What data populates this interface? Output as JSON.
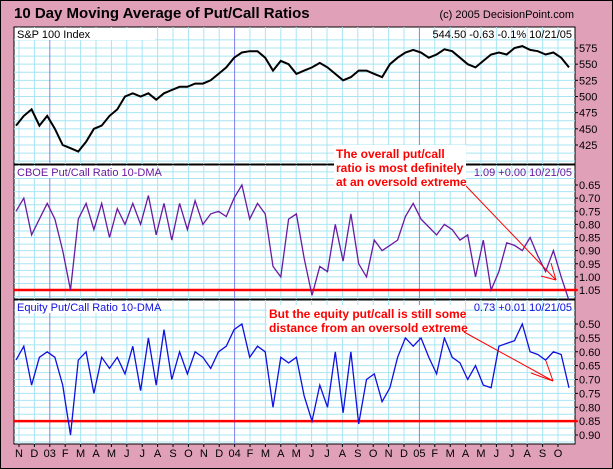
{
  "header": {
    "title": "10 Day Moving Average of Put/Call Ratios",
    "copyright": "(c) 2005 DecisionPoint.com"
  },
  "chart_data": [
    {
      "type": "line",
      "title": "S&P 100 Index",
      "readout": "544.50  -0.63  -0.1%  10/21/05",
      "color": "#000000",
      "ylim": [
        400,
        595
      ],
      "ticks": [
        425,
        450,
        475,
        500,
        525,
        550,
        575
      ],
      "tick_labels": [
        "425",
        "450",
        "475",
        "500",
        "525",
        "550",
        "575"
      ],
      "values": [
        455,
        470,
        480,
        455,
        470,
        450,
        425,
        420,
        415,
        430,
        450,
        455,
        470,
        480,
        500,
        505,
        500,
        505,
        495,
        505,
        510,
        515,
        515,
        520,
        520,
        525,
        535,
        545,
        560,
        568,
        570,
        570,
        560,
        540,
        555,
        550,
        535,
        540,
        545,
        552,
        545,
        535,
        525,
        530,
        540,
        540,
        535,
        530,
        550,
        560,
        568,
        572,
        568,
        560,
        565,
        573,
        570,
        560,
        550,
        545,
        555,
        565,
        568,
        565,
        575,
        578,
        572,
        570,
        565,
        568,
        560,
        545
      ]
    },
    {
      "type": "line",
      "title": "CBOE Put/Call Ratio 10-DMA",
      "readout": "1.09  +0.00  10/21/05",
      "color": "#6A1BA0",
      "inverted": true,
      "ylim": [
        0.6,
        1.1
      ],
      "ticks": [
        0.65,
        0.7,
        0.75,
        0.8,
        0.85,
        0.9,
        0.95,
        1.0,
        1.05
      ],
      "tick_labels": [
        "0.65",
        "0.70",
        "0.75",
        "0.80",
        "0.85",
        "0.90",
        "0.95",
        "1.00",
        "1.05"
      ],
      "reference_line": 1.05,
      "values": [
        0.75,
        0.7,
        0.84,
        0.78,
        0.72,
        0.78,
        0.9,
        1.05,
        0.78,
        0.72,
        0.82,
        0.72,
        0.85,
        0.74,
        0.8,
        0.72,
        0.8,
        0.69,
        0.84,
        0.72,
        0.86,
        0.72,
        0.82,
        0.71,
        0.8,
        0.76,
        0.75,
        0.77,
        0.7,
        0.65,
        0.78,
        0.72,
        0.76,
        0.96,
        1.0,
        0.78,
        0.76,
        0.93,
        1.07,
        0.96,
        0.98,
        0.8,
        0.94,
        0.76,
        0.95,
        1.0,
        0.86,
        0.9,
        0.88,
        0.86,
        0.77,
        0.72,
        0.78,
        0.81,
        0.84,
        0.8,
        0.82,
        0.86,
        0.84,
        1.0,
        0.86,
        1.05,
        0.98,
        0.87,
        0.88,
        0.9,
        0.85,
        0.92,
        0.98,
        0.9,
        1.0,
        1.09
      ]
    },
    {
      "type": "line",
      "title": "Equity Put/Call Ratio 10-DMA",
      "readout": "0.73  +0.01  10/21/05",
      "color": "#1010E0",
      "inverted": true,
      "ylim": [
        0.45,
        0.93
      ],
      "ticks": [
        0.5,
        0.55,
        0.6,
        0.65,
        0.7,
        0.75,
        0.8,
        0.85,
        0.9
      ],
      "tick_labels": [
        "0.50",
        "0.55",
        "0.60",
        "0.65",
        "0.70",
        "0.75",
        "0.80",
        "0.85",
        "0.90"
      ],
      "reference_line": 0.85,
      "values": [
        0.63,
        0.58,
        0.72,
        0.62,
        0.6,
        0.62,
        0.72,
        0.9,
        0.63,
        0.6,
        0.75,
        0.62,
        0.66,
        0.62,
        0.68,
        0.58,
        0.74,
        0.55,
        0.72,
        0.52,
        0.7,
        0.6,
        0.68,
        0.6,
        0.62,
        0.66,
        0.6,
        0.58,
        0.52,
        0.5,
        0.62,
        0.58,
        0.6,
        0.8,
        0.62,
        0.64,
        0.62,
        0.76,
        0.85,
        0.72,
        0.8,
        0.6,
        0.82,
        0.6,
        0.86,
        0.7,
        0.68,
        0.78,
        0.73,
        0.62,
        0.55,
        0.58,
        0.55,
        0.62,
        0.68,
        0.55,
        0.62,
        0.64,
        0.7,
        0.65,
        0.72,
        0.73,
        0.58,
        0.57,
        0.56,
        0.5,
        0.6,
        0.61,
        0.63,
        0.6,
        0.61,
        0.73
      ]
    }
  ],
  "x_axis": {
    "labels": [
      "N",
      "D",
      "03",
      "F",
      "M",
      "A",
      "M",
      "J",
      "J",
      "A",
      "S",
      "O",
      "N",
      "D",
      "04",
      "F",
      "M",
      "A",
      "M",
      "J",
      "J",
      "A",
      "S",
      "O",
      "N",
      "D",
      "05",
      "F",
      "M",
      "A",
      "M",
      "J",
      "J",
      "A",
      "S",
      "O"
    ],
    "year_marks": [
      2,
      14,
      26
    ]
  },
  "annotations": [
    {
      "lines": [
        "The overall put/call",
        "ratio is most definitely",
        "at an oversold extreme"
      ]
    },
    {
      "lines": [
        "But the equity put/call is still some",
        "distance from an oversold extreme"
      ]
    }
  ]
}
